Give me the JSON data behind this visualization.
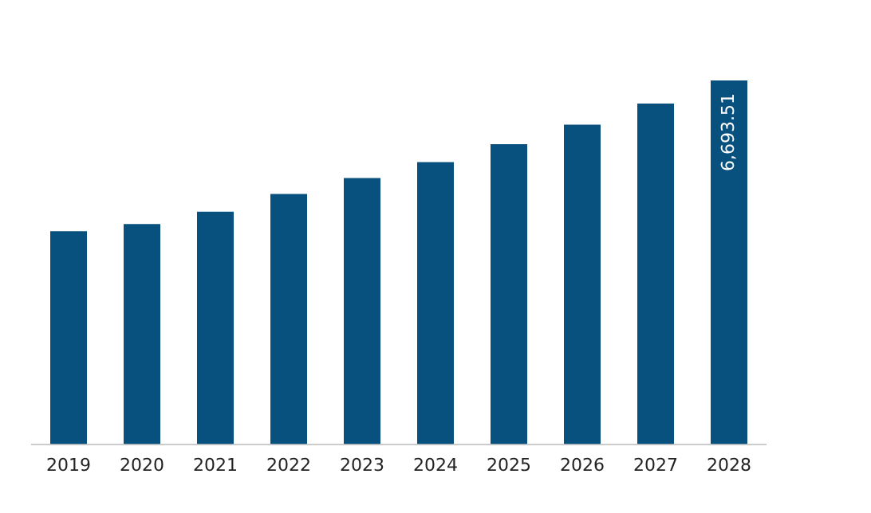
{
  "chart_data": {
    "type": "bar",
    "categories": [
      "2019",
      "2020",
      "2021",
      "2022",
      "2023",
      "2024",
      "2025",
      "2026",
      "2027",
      "2028"
    ],
    "values": [
      3918,
      4049,
      4277,
      4604,
      4898,
      5191,
      5518,
      5877,
      6269,
      6693.51
    ],
    "value_labels": [
      null,
      null,
      null,
      null,
      null,
      null,
      null,
      null,
      null,
      "6,693.51"
    ],
    "color": "#08517f",
    "grid": false,
    "legend": false
  }
}
